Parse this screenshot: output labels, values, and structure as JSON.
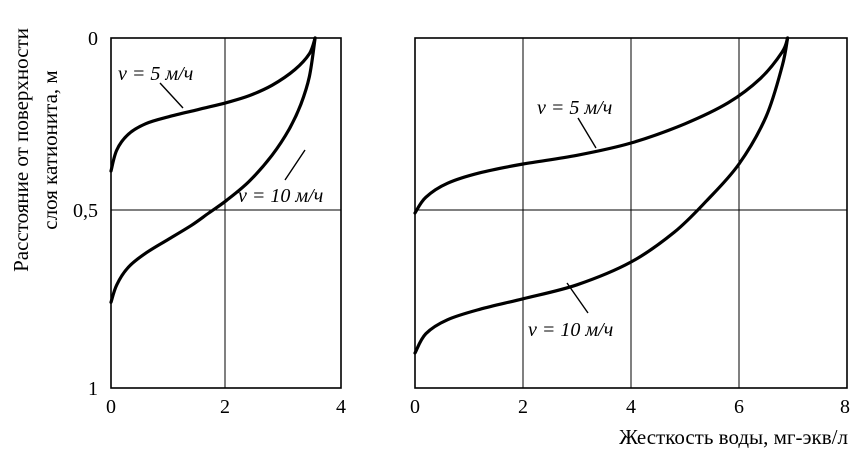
{
  "ylabel_line1": "Расстояние от поверхности",
  "ylabel_line2": "слоя катионита, м",
  "xlabel": "Жесткость воды, мг-экв/л",
  "chart_data": [
    {
      "type": "line",
      "xlim": [
        0,
        4
      ],
      "ylim": [
        0,
        1
      ],
      "y_inverted": true,
      "grid": true,
      "x_ticks": [
        "0",
        "2",
        "4"
      ],
      "y_ticks": [
        "0",
        "0,5",
        "1"
      ],
      "series": [
        {
          "name": "v = 5 м/ч",
          "points": [
            [
              0,
              0.38
            ],
            [
              0.1,
              0.32
            ],
            [
              0.3,
              0.275
            ],
            [
              0.6,
              0.245
            ],
            [
              1.0,
              0.225
            ],
            [
              1.5,
              0.205
            ],
            [
              2.0,
              0.185
            ],
            [
              2.4,
              0.165
            ],
            [
              2.8,
              0.135
            ],
            [
              3.2,
              0.09
            ],
            [
              3.45,
              0.045
            ],
            [
              3.55,
              0.0
            ]
          ]
        },
        {
          "name": "v = 10 м/ч",
          "points": [
            [
              0,
              0.755
            ],
            [
              0.1,
              0.705
            ],
            [
              0.3,
              0.655
            ],
            [
              0.6,
              0.615
            ],
            [
              1.0,
              0.575
            ],
            [
              1.4,
              0.535
            ],
            [
              1.7,
              0.5
            ],
            [
              2.0,
              0.465
            ],
            [
              2.4,
              0.41
            ],
            [
              2.8,
              0.335
            ],
            [
              3.1,
              0.26
            ],
            [
              3.3,
              0.19
            ],
            [
              3.45,
              0.11
            ],
            [
              3.55,
              0.0
            ]
          ]
        }
      ]
    },
    {
      "type": "line",
      "xlim": [
        0,
        8
      ],
      "ylim": [
        0,
        1
      ],
      "y_inverted": true,
      "grid": true,
      "x_ticks": [
        "0",
        "2",
        "4",
        "6",
        "8"
      ],
      "series": [
        {
          "name": "v = 5 м/ч",
          "points": [
            [
              0,
              0.5
            ],
            [
              0.2,
              0.455
            ],
            [
              0.6,
              0.415
            ],
            [
              1.2,
              0.385
            ],
            [
              2.0,
              0.36
            ],
            [
              3.0,
              0.335
            ],
            [
              4.0,
              0.3
            ],
            [
              5.0,
              0.245
            ],
            [
              5.8,
              0.185
            ],
            [
              6.4,
              0.115
            ],
            [
              6.8,
              0.04
            ],
            [
              6.9,
              0.0
            ]
          ]
        },
        {
          "name": "v = 10 м/ч",
          "points": [
            [
              0,
              0.9
            ],
            [
              0.2,
              0.845
            ],
            [
              0.6,
              0.805
            ],
            [
              1.2,
              0.775
            ],
            [
              2.0,
              0.745
            ],
            [
              3.0,
              0.705
            ],
            [
              4.0,
              0.64
            ],
            [
              4.8,
              0.555
            ],
            [
              5.4,
              0.465
            ],
            [
              6.0,
              0.36
            ],
            [
              6.5,
              0.225
            ],
            [
              6.8,
              0.08
            ],
            [
              6.9,
              0.0
            ]
          ]
        }
      ]
    }
  ]
}
